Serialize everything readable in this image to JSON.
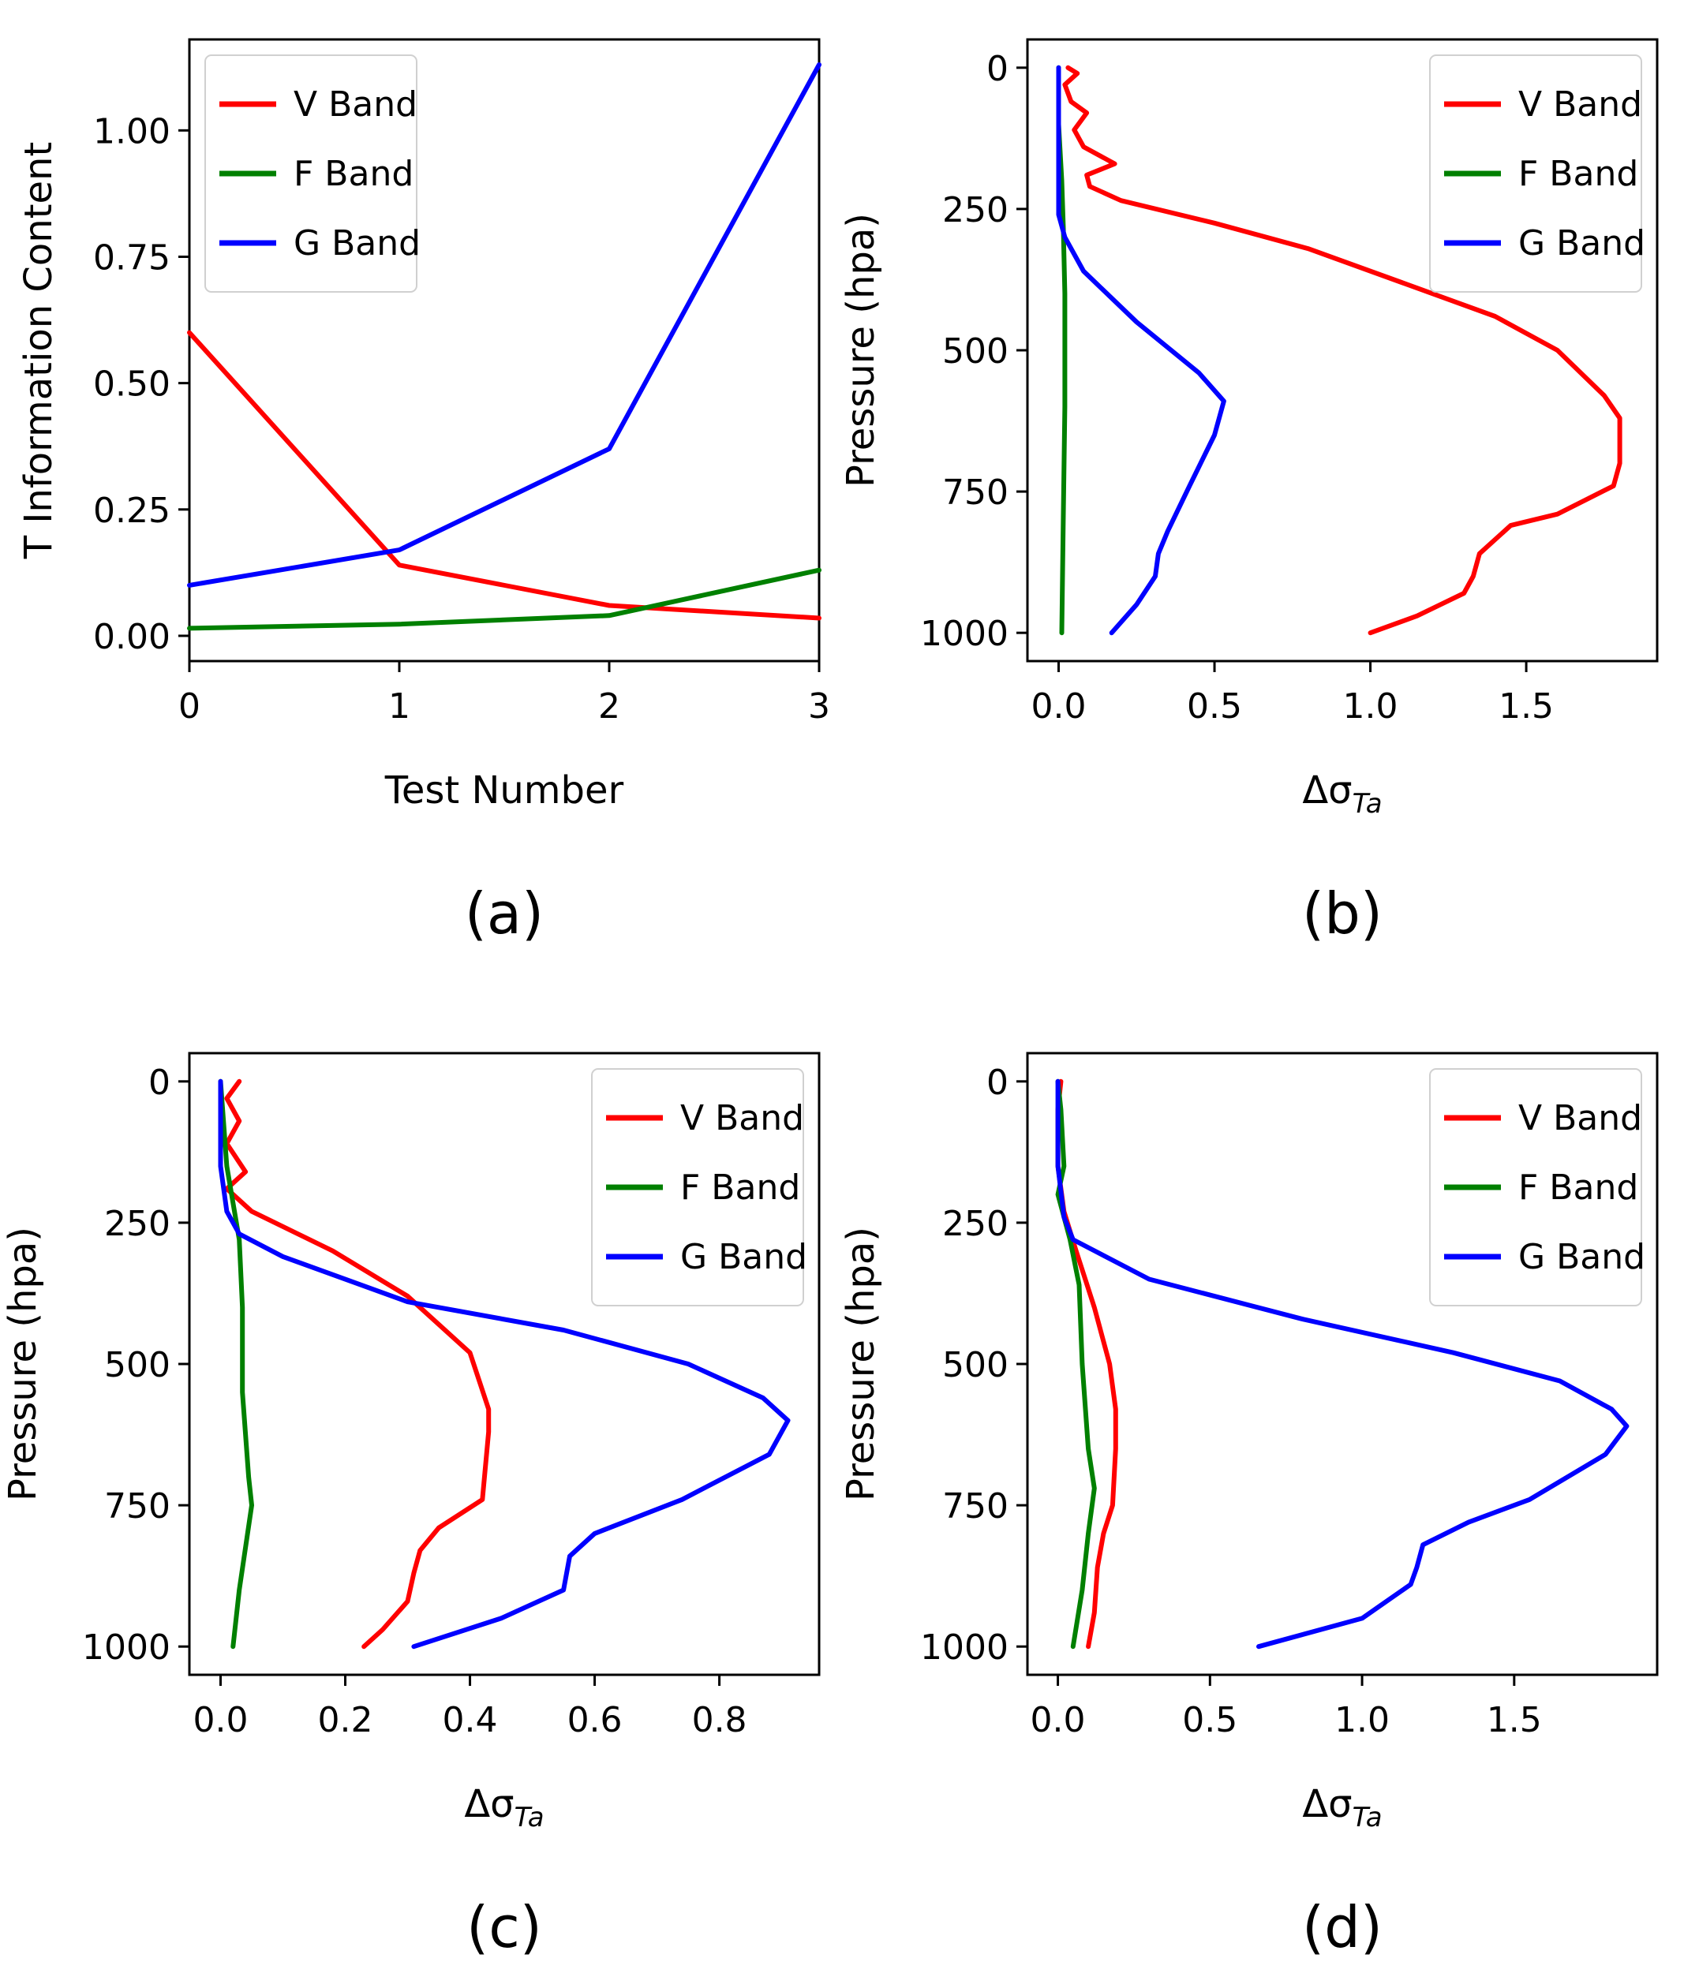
{
  "chart_data": [
    {
      "id": "a",
      "type": "line",
      "panel_label": "(a)",
      "xlabel": "Test Number",
      "ylabel": "T Information Content",
      "xlim": [
        0,
        3
      ],
      "ylim": [
        -0.05,
        1.18
      ],
      "xticks": [
        0,
        1,
        2,
        3
      ],
      "xtick_labels": [
        "0",
        "1",
        "2",
        "3"
      ],
      "yticks": [
        0,
        0.25,
        0.5,
        0.75,
        1.0
      ],
      "ytick_labels": [
        "0.00",
        "0.25",
        "0.50",
        "0.75",
        "1.00"
      ],
      "legend": "top-left",
      "series": [
        {
          "name": "V Band",
          "color": "#ff0000",
          "points": [
            [
              0,
              0.6
            ],
            [
              1,
              0.14
            ],
            [
              2,
              0.06
            ],
            [
              3,
              0.035
            ]
          ]
        },
        {
          "name": "F Band",
          "color": "#008000",
          "points": [
            [
              0,
              0.015
            ],
            [
              1,
              0.023
            ],
            [
              2,
              0.04
            ],
            [
              3,
              0.13
            ]
          ]
        },
        {
          "name": "G Band",
          "color": "#0000ff",
          "points": [
            [
              0,
              0.1
            ],
            [
              1,
              0.17
            ],
            [
              2,
              0.37
            ],
            [
              3,
              1.13
            ]
          ]
        }
      ]
    },
    {
      "id": "b",
      "type": "line",
      "panel_label": "(b)",
      "xlabel": "Δσ",
      "xlabel_sub": "Ta",
      "ylabel": "Pressure (hpa)",
      "xlim": [
        -0.1,
        1.92
      ],
      "ylim": [
        1050,
        -50
      ],
      "xticks": [
        0,
        0.5,
        1.0,
        1.5
      ],
      "xtick_labels": [
        "0.0",
        "0.5",
        "1.0",
        "1.5"
      ],
      "yticks": [
        0,
        250,
        500,
        750,
        1000
      ],
      "ytick_labels": [
        "0",
        "250",
        "500",
        "750",
        "1000"
      ],
      "legend": "top-right",
      "series": [
        {
          "name": "V Band",
          "color": "#ff0000",
          "points": [
            [
              0.03,
              0
            ],
            [
              0.06,
              10
            ],
            [
              0.02,
              30
            ],
            [
              0.04,
              60
            ],
            [
              0.09,
              80
            ],
            [
              0.05,
              110
            ],
            [
              0.08,
              140
            ],
            [
              0.18,
              170
            ],
            [
              0.09,
              190
            ],
            [
              0.1,
              210
            ],
            [
              0.2,
              235
            ],
            [
              0.5,
              275
            ],
            [
              0.8,
              320
            ],
            [
              1.1,
              380
            ],
            [
              1.4,
              440
            ],
            [
              1.6,
              500
            ],
            [
              1.75,
              580
            ],
            [
              1.8,
              620
            ],
            [
              1.8,
              700
            ],
            [
              1.78,
              740
            ],
            [
              1.6,
              790
            ],
            [
              1.45,
              810
            ],
            [
              1.35,
              860
            ],
            [
              1.33,
              900
            ],
            [
              1.3,
              930
            ],
            [
              1.15,
              970
            ],
            [
              1.0,
              1000
            ]
          ]
        },
        {
          "name": "F Band",
          "color": "#008000",
          "points": [
            [
              0.0,
              0
            ],
            [
              0.0,
              100
            ],
            [
              0.01,
              200
            ],
            [
              0.015,
              280
            ],
            [
              0.02,
              400
            ],
            [
              0.02,
              600
            ],
            [
              0.015,
              800
            ],
            [
              0.01,
              1000
            ]
          ]
        },
        {
          "name": "G Band",
          "color": "#0000ff",
          "points": [
            [
              0.0,
              0
            ],
            [
              0.0,
              150
            ],
            [
              0.0,
              260
            ],
            [
              0.02,
              300
            ],
            [
              0.08,
              360
            ],
            [
              0.25,
              450
            ],
            [
              0.45,
              540
            ],
            [
              0.53,
              590
            ],
            [
              0.5,
              650
            ],
            [
              0.42,
              740
            ],
            [
              0.35,
              820
            ],
            [
              0.32,
              860
            ],
            [
              0.31,
              900
            ],
            [
              0.25,
              950
            ],
            [
              0.17,
              1000
            ]
          ]
        }
      ]
    },
    {
      "id": "c",
      "type": "line",
      "panel_label": "(c)",
      "xlabel": "Δσ",
      "xlabel_sub": "Ta",
      "ylabel": "Pressure (hpa)",
      "xlim": [
        -0.05,
        0.96
      ],
      "ylim": [
        1050,
        -50
      ],
      "xticks": [
        0,
        0.2,
        0.4,
        0.6,
        0.8
      ],
      "xtick_labels": [
        "0.0",
        "0.2",
        "0.4",
        "0.6",
        "0.8"
      ],
      "yticks": [
        0,
        250,
        500,
        750,
        1000
      ],
      "ytick_labels": [
        "0",
        "250",
        "500",
        "750",
        "1000"
      ],
      "legend": "top-right",
      "series": [
        {
          "name": "V Band",
          "color": "#ff0000",
          "points": [
            [
              0.03,
              0
            ],
            [
              0.01,
              30
            ],
            [
              0.03,
              70
            ],
            [
              0.01,
              110
            ],
            [
              0.04,
              160
            ],
            [
              0.01,
              190
            ],
            [
              0.05,
              230
            ],
            [
              0.18,
              300
            ],
            [
              0.3,
              380
            ],
            [
              0.4,
              480
            ],
            [
              0.43,
              580
            ],
            [
              0.43,
              620
            ],
            [
              0.42,
              740
            ],
            [
              0.35,
              790
            ],
            [
              0.32,
              830
            ],
            [
              0.31,
              870
            ],
            [
              0.3,
              920
            ],
            [
              0.26,
              970
            ],
            [
              0.23,
              1000
            ]
          ]
        },
        {
          "name": "F Band",
          "color": "#008000",
          "points": [
            [
              0.0,
              0
            ],
            [
              0.01,
              150
            ],
            [
              0.03,
              280
            ],
            [
              0.035,
              400
            ],
            [
              0.035,
              550
            ],
            [
              0.045,
              700
            ],
            [
              0.05,
              750
            ],
            [
              0.03,
              900
            ],
            [
              0.02,
              1000
            ]
          ]
        },
        {
          "name": "G Band",
          "color": "#0000ff",
          "points": [
            [
              0.0,
              0
            ],
            [
              0.0,
              150
            ],
            [
              0.01,
              230
            ],
            [
              0.03,
              270
            ],
            [
              0.1,
              310
            ],
            [
              0.3,
              390
            ],
            [
              0.55,
              440
            ],
            [
              0.75,
              500
            ],
            [
              0.87,
              560
            ],
            [
              0.91,
              600
            ],
            [
              0.88,
              660
            ],
            [
              0.74,
              740
            ],
            [
              0.6,
              800
            ],
            [
              0.56,
              840
            ],
            [
              0.55,
              900
            ],
            [
              0.45,
              950
            ],
            [
              0.31,
              1000
            ]
          ]
        }
      ]
    },
    {
      "id": "d",
      "type": "line",
      "panel_label": "(d)",
      "xlabel": "Δσ",
      "xlabel_sub": "Ta",
      "ylabel": "Pressure (hpa)",
      "xlim": [
        -0.1,
        1.97
      ],
      "ylim": [
        1050,
        -50
      ],
      "xticks": [
        0,
        0.5,
        1.0,
        1.5
      ],
      "xtick_labels": [
        "0.0",
        "0.5",
        "1.0",
        "1.5"
      ],
      "yticks": [
        0,
        250,
        500,
        750,
        1000
      ],
      "ytick_labels": [
        "0",
        "250",
        "500",
        "750",
        "1000"
      ],
      "legend": "top-right",
      "series": [
        {
          "name": "V Band",
          "color": "#ff0000",
          "points": [
            [
              0.01,
              0
            ],
            [
              0.0,
              50
            ],
            [
              0.0,
              150
            ],
            [
              0.02,
              230
            ],
            [
              0.06,
              300
            ],
            [
              0.12,
              400
            ],
            [
              0.17,
              500
            ],
            [
              0.19,
              580
            ],
            [
              0.19,
              650
            ],
            [
              0.18,
              750
            ],
            [
              0.15,
              800
            ],
            [
              0.13,
              860
            ],
            [
              0.12,
              940
            ],
            [
              0.1,
              1000
            ]
          ]
        },
        {
          "name": "F Band",
          "color": "#008000",
          "points": [
            [
              0.0,
              0
            ],
            [
              0.01,
              50
            ],
            [
              0.02,
              150
            ],
            [
              0.0,
              200
            ],
            [
              0.04,
              280
            ],
            [
              0.07,
              360
            ],
            [
              0.08,
              500
            ],
            [
              0.1,
              650
            ],
            [
              0.12,
              720
            ],
            [
              0.1,
              800
            ],
            [
              0.08,
              900
            ],
            [
              0.05,
              1000
            ]
          ]
        },
        {
          "name": "G Band",
          "color": "#0000ff",
          "points": [
            [
              0.0,
              0
            ],
            [
              0.0,
              150
            ],
            [
              0.02,
              240
            ],
            [
              0.05,
              280
            ],
            [
              0.3,
              350
            ],
            [
              0.8,
              420
            ],
            [
              1.3,
              480
            ],
            [
              1.65,
              530
            ],
            [
              1.82,
              580
            ],
            [
              1.87,
              610
            ],
            [
              1.8,
              660
            ],
            [
              1.55,
              740
            ],
            [
              1.35,
              780
            ],
            [
              1.2,
              820
            ],
            [
              1.18,
              860
            ],
            [
              1.16,
              890
            ],
            [
              1.0,
              950
            ],
            [
              0.66,
              1000
            ]
          ]
        }
      ]
    }
  ]
}
